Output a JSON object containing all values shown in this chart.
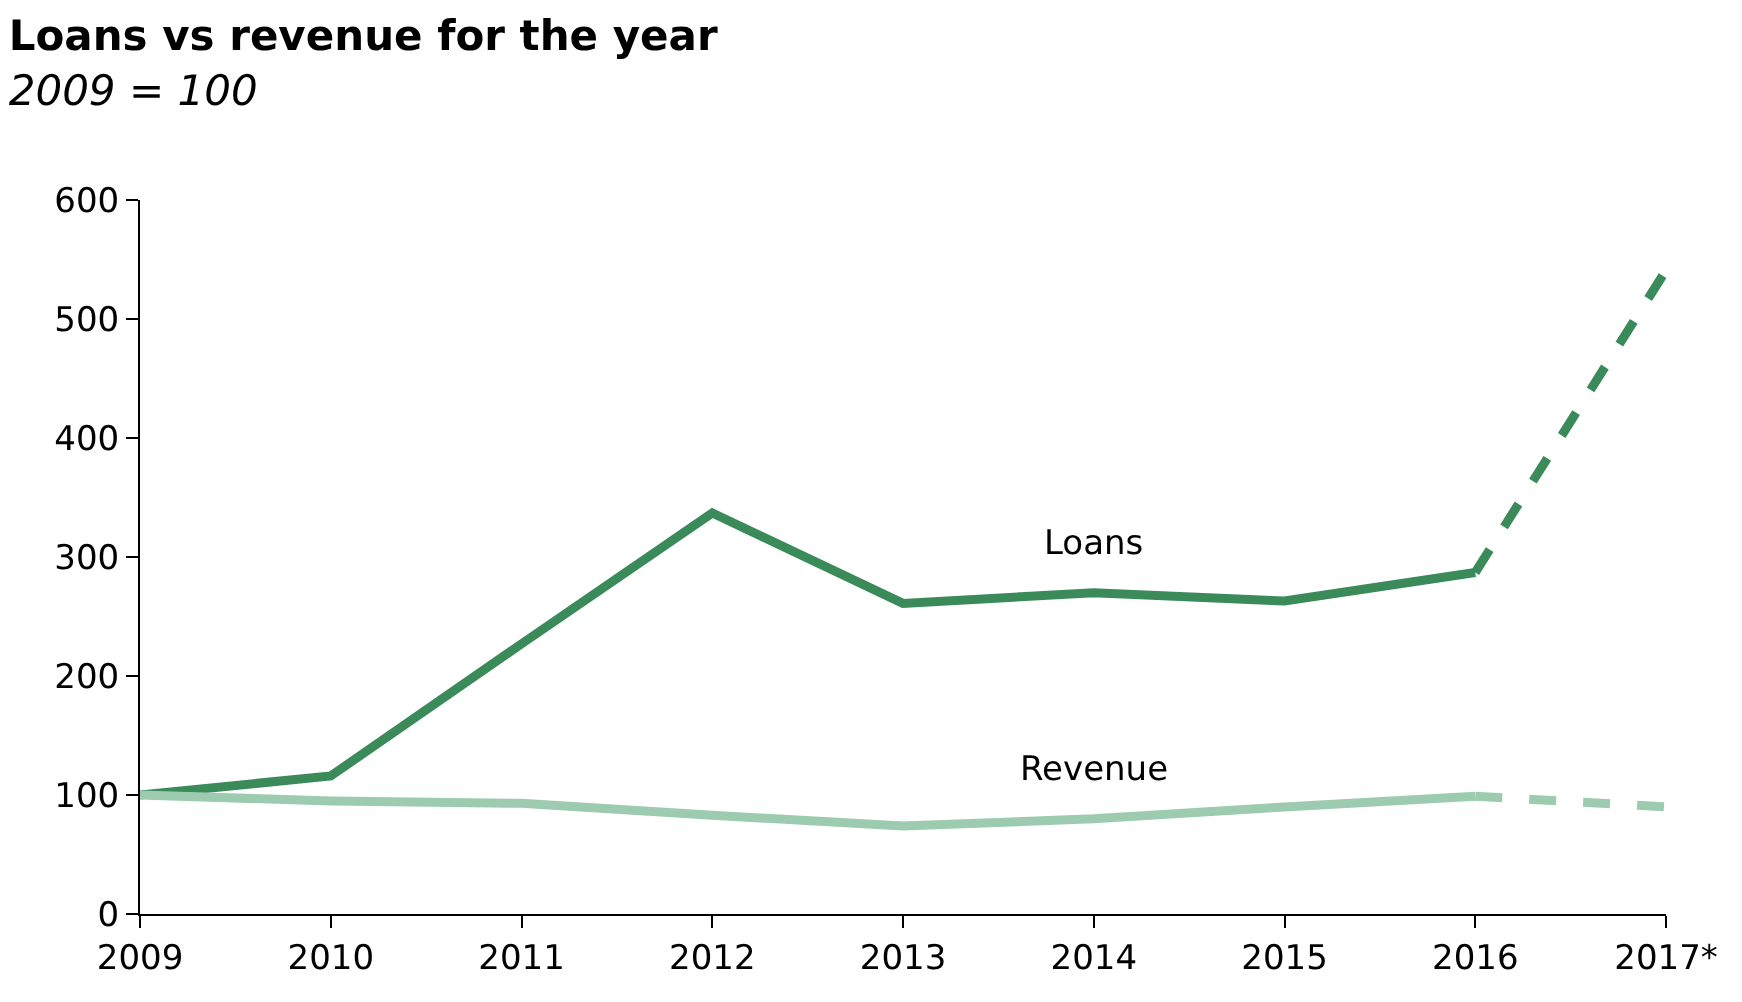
{
  "chart_data": {
    "type": "line",
    "title": "Loans vs revenue for the year",
    "subtitle": "2009 = 100",
    "categories": [
      "2009",
      "2010",
      "2011",
      "2012",
      "2013",
      "2014",
      "2015",
      "2016",
      "2017*"
    ],
    "series": [
      {
        "name": "Loans",
        "color": "#3a8a5a",
        "line_style": "solid",
        "values": [
          100,
          116,
          227,
          337,
          261,
          270,
          263,
          287,
          null
        ]
      },
      {
        "color": "#3a8a5a",
        "line_style": "dashed",
        "values": [
          null,
          null,
          null,
          null,
          null,
          null,
          null,
          287,
          541
        ]
      },
      {
        "name": "Revenue",
        "color": "#9ccbb0",
        "line_style": "solid",
        "values": [
          100,
          95,
          93,
          83,
          74,
          80,
          90,
          99,
          null
        ]
      },
      {
        "color": "#9ccbb0",
        "line_style": "dashed",
        "values": [
          null,
          null,
          null,
          null,
          null,
          null,
          null,
          99,
          90
        ]
      }
    ],
    "ylim": [
      0,
      600
    ],
    "yticks": [
      0,
      100,
      200,
      300,
      400,
      500,
      600
    ],
    "grid": false,
    "legend": false,
    "marker": "none"
  }
}
